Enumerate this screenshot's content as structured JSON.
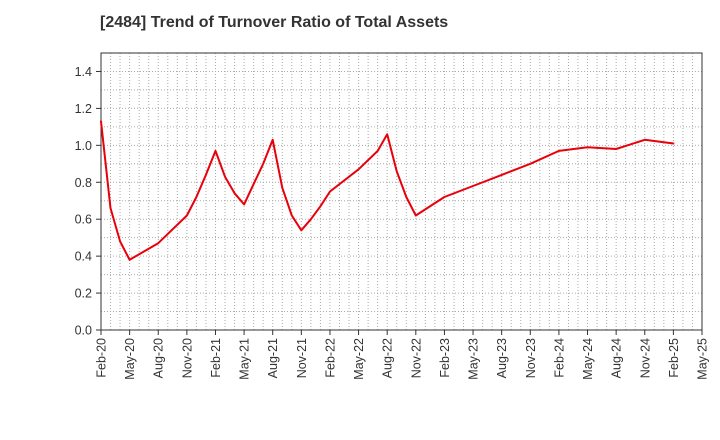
{
  "title": "[2484]  Trend of Turnover Ratio of Total Assets",
  "colors": {
    "line": "#e8000b",
    "grid": "#aaaaaa",
    "axis": "#333333"
  },
  "chart_data": {
    "type": "line",
    "title": "[2484]  Trend of Turnover Ratio of Total Assets",
    "xlabel": "",
    "ylabel": "",
    "ylim": [
      0,
      1.5
    ],
    "y_ticks": [
      "0.0",
      "0.2",
      "0.4",
      "0.6",
      "0.8",
      "1.0",
      "1.2",
      "1.4"
    ],
    "x_ticks": [
      "Feb-20",
      "May-20",
      "Aug-20",
      "Nov-20",
      "Feb-21",
      "May-21",
      "Aug-21",
      "Nov-21",
      "Feb-22",
      "May-22",
      "Aug-22",
      "Nov-22",
      "Feb-23",
      "May-23",
      "Aug-23",
      "Nov-23",
      "Feb-24",
      "May-24",
      "Aug-24",
      "Nov-24",
      "Feb-25",
      "May-25"
    ],
    "grid": true,
    "legend": "none",
    "series": [
      {
        "x": [
          "Feb-20",
          "Mar-20",
          "Apr-20",
          "May-20",
          "Aug-20",
          "Nov-20",
          "Dec-20",
          "Jan-21",
          "Feb-21",
          "Mar-21",
          "Apr-21",
          "May-21",
          "Jun-21",
          "Jul-21",
          "Aug-21",
          "Sep-21",
          "Oct-21",
          "Nov-21",
          "Dec-21",
          "Jan-22",
          "Feb-22",
          "May-22",
          "Jul-22",
          "Aug-22",
          "Sep-22",
          "Oct-22",
          "Nov-22",
          "Feb-23",
          "May-23",
          "Aug-23",
          "Nov-23",
          "Feb-24",
          "May-24",
          "Aug-24",
          "Nov-24",
          "Feb-25"
        ],
        "values": [
          1.13,
          0.66,
          0.48,
          0.38,
          0.47,
          0.62,
          0.72,
          0.84,
          0.97,
          0.83,
          0.74,
          0.68,
          0.79,
          0.9,
          1.03,
          0.77,
          0.62,
          0.54,
          0.6,
          0.67,
          0.75,
          0.87,
          0.97,
          1.06,
          0.86,
          0.72,
          0.62,
          0.72,
          0.78,
          0.84,
          0.9,
          0.97,
          0.99,
          0.98,
          1.03,
          1.01
        ]
      }
    ]
  }
}
